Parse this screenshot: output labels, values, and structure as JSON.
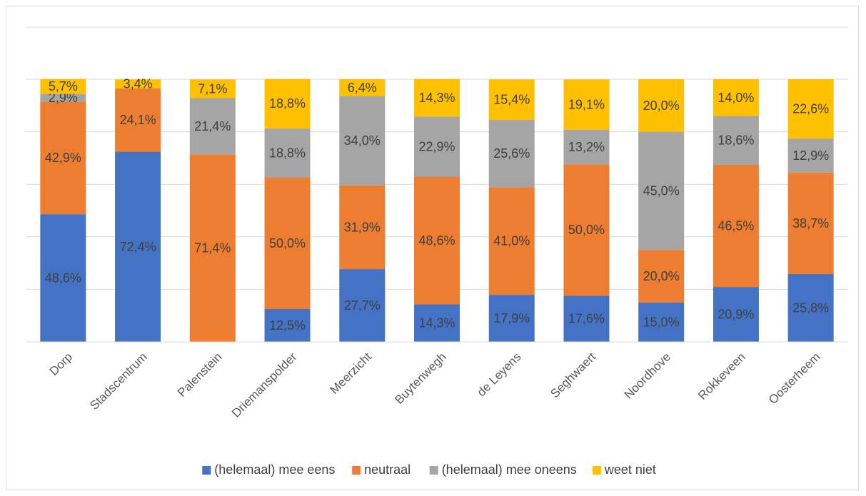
{
  "chart_data": {
    "type": "bar",
    "stacked": true,
    "percent_stacked": true,
    "categories": [
      "Dorp",
      "Stadscentrum",
      "Palenstein",
      "Driemanspolder",
      "Meerzicht",
      "Buytenwegh",
      "de Leyens",
      "Seghwaert",
      "Noordhove",
      "Rokkeveen",
      "Oosterheem"
    ],
    "series": [
      {
        "name": "(helemaal) mee eens",
        "color": "#4472c4",
        "values": [
          48.6,
          72.4,
          0,
          12.5,
          27.7,
          14.3,
          17.9,
          17.6,
          15.0,
          20.9,
          25.8
        ],
        "labels": [
          "48,6%",
          "72,4%",
          "",
          "12,5%",
          "27,7%",
          "14,3%",
          "17,9%",
          "17,6%",
          "15,0%",
          "20,9%",
          "25,8%"
        ]
      },
      {
        "name": "neutraal",
        "color": "#ed7d31",
        "values": [
          42.9,
          24.1,
          71.4,
          50.0,
          31.9,
          48.6,
          41.0,
          50.0,
          20.0,
          46.5,
          38.7
        ],
        "labels": [
          "42,9%",
          "24,1%",
          "71,4%",
          "50,0%",
          "31,9%",
          "48,6%",
          "41,0%",
          "50,0%",
          "20,0%",
          "46,5%",
          "38,7%"
        ]
      },
      {
        "name": "(helemaal) mee oneens",
        "color": "#a5a5a5",
        "values": [
          2.9,
          0,
          21.4,
          18.8,
          34.0,
          22.9,
          25.6,
          13.2,
          45.0,
          18.6,
          12.9
        ],
        "labels": [
          "2,9%",
          "",
          "21,4%",
          "18,8%",
          "34,0%",
          "22,9%",
          "25,6%",
          "13,2%",
          "45,0%",
          "18,6%",
          "12,9%"
        ]
      },
      {
        "name": "weet niet",
        "color": "#ffc000",
        "values": [
          5.7,
          3.4,
          7.1,
          18.8,
          6.4,
          14.3,
          15.4,
          19.1,
          20.0,
          14.0,
          22.6
        ],
        "labels": [
          "5,7%",
          "3,4%",
          "7,1%",
          "18,8%",
          "6,4%",
          "14,3%",
          "15,4%",
          "19,1%",
          "20,0%",
          "14,0%",
          "22,6%"
        ]
      }
    ],
    "ylim": [
      0,
      100
    ],
    "grid": true,
    "legend_position": "bottom",
    "title": "",
    "xlabel": "",
    "ylabel": ""
  }
}
